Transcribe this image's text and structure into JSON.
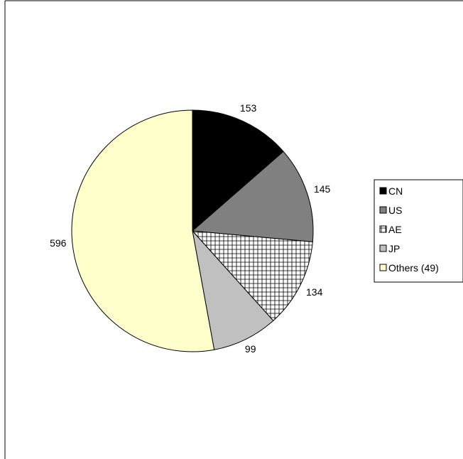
{
  "chart_data": {
    "type": "pie",
    "title": "",
    "categories": [
      "CN",
      "US",
      "AE",
      "JP",
      "Others (49)"
    ],
    "values": [
      153,
      145,
      134,
      99,
      596
    ],
    "data_labels": [
      "153",
      "145",
      "134",
      "99",
      "596"
    ],
    "colors": [
      "#000000",
      "#808080",
      "crosshatch",
      "#c0c0c0",
      "#ffffcc"
    ],
    "legend": {
      "placement": "right",
      "entries": [
        "CN",
        "US",
        "AE",
        "JP",
        "Others (49)"
      ]
    },
    "start_angle": "12 o'clock",
    "direction": "clockwise"
  }
}
